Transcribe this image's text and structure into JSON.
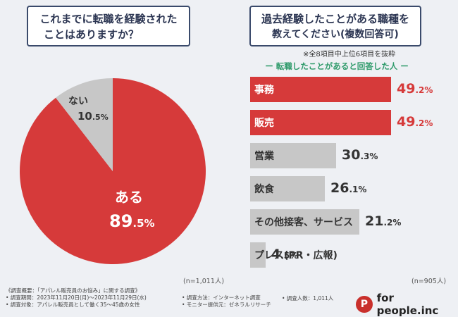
{
  "left_question": {
    "line1": "これまでに転職を経験された",
    "line2": "ことはありますか？"
  },
  "right_question": {
    "line1": "過去経験したことがある職種を",
    "line2": "教えてください(複数回答可)"
  },
  "note": "※全8項目中上位6項目を抜粋",
  "subhead": "ー 転職したことがあると回答した人 ー",
  "n_left": "(n=1,011人)",
  "n_right": "(n=905人)",
  "colors": {
    "accent": "#d63a3a",
    "gray": "#c7c7c7",
    "green": "#2e9a6a"
  },
  "chart_data": [
    {
      "type": "pie",
      "title": "これまでに転職を経験されたことはありますか？",
      "categories": [
        "ある",
        "ない"
      ],
      "values": [
        89.5,
        10.5
      ],
      "labels": {
        "yes": "ある",
        "no": "ない"
      },
      "value_labels": {
        "yes_int": "89",
        "yes_dec": ".5%",
        "no_int": "10",
        "no_dec": ".5%"
      }
    },
    {
      "type": "bar",
      "title": "過去経験したことがある職種を教えてください(複数回答可)",
      "categories": [
        "事務",
        "販売",
        "営業",
        "飲食",
        "その他接客、サービス",
        "プレス(PR・広報)"
      ],
      "values": [
        49.2,
        49.2,
        30.3,
        26.1,
        21.2,
        4.5
      ],
      "value_labels": [
        [
          "49",
          ".2%"
        ],
        [
          "49",
          ".2%"
        ],
        [
          "30",
          ".3%"
        ],
        [
          "26",
          ".1%"
        ],
        [
          "21",
          ".2%"
        ],
        [
          "4",
          ".5%"
        ]
      ],
      "highlight": [
        true,
        true,
        false,
        false,
        false,
        false
      ]
    }
  ],
  "footer": {
    "line1": "《調査概要：「アパレル販売員のお悩み」に関する調査》",
    "line2": "• 調査期間：2023年11月20日(月)～2023年11月29日(水)",
    "line3": "• 調査対象：アパレル販売員として働く35～45歳の女性",
    "method": "• 調査方法：インターネット調査",
    "monitor": "• モニター提供元：ゼネラルリサーチ",
    "count": "• 調査人数：1,011人"
  },
  "brand": {
    "mark": "P",
    "name": "for people.inc"
  }
}
